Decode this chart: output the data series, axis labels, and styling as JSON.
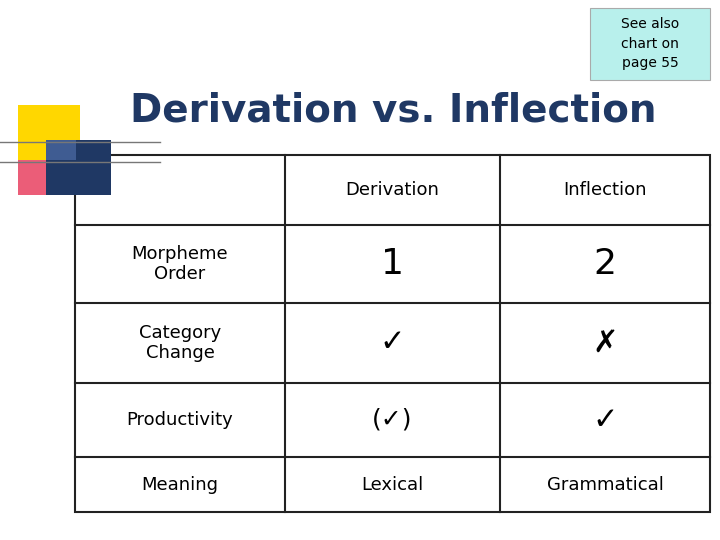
{
  "title": "Derivation vs. Inflection",
  "title_color": "#1F3864",
  "title_fontsize": 28,
  "bg_color": "#FFFFFF",
  "note_text": "See also\nchart on\npage 55",
  "note_bg": "#B8F0EC",
  "note_fontsize": 10,
  "table_headers": [
    "",
    "Derivation",
    "Inflection"
  ],
  "table_rows": [
    [
      "Morpheme\nOrder",
      "1",
      "2"
    ],
    [
      "Category\nChange",
      "✓",
      "✗"
    ],
    [
      "Productivity",
      "(✓)",
      "✓"
    ],
    [
      "Meaning",
      "Lexical",
      "Grammatical"
    ]
  ],
  "header_fontsize": 13,
  "cell_fontsize": 13,
  "row_label_fontsize": 13,
  "checkmark_fontsize": 22,
  "number_fontsize": 26,
  "line_color": "#222222",
  "logo_yellow": "#FFD700",
  "logo_blue": "#1F3864",
  "logo_red": "#E84060",
  "logo_blue2": "#6080C0"
}
